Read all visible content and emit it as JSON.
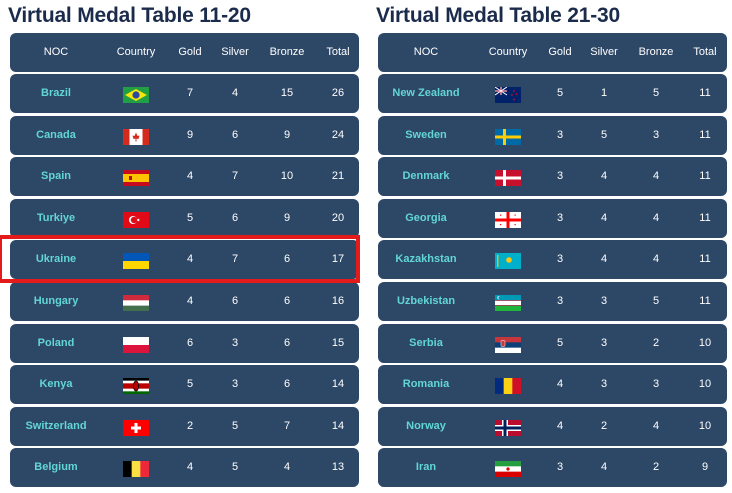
{
  "panels": [
    {
      "title": "Virtual Medal Table 11-20",
      "columns": [
        "NOC",
        "Country",
        "Gold",
        "Silver",
        "Bronze",
        "Total"
      ],
      "rows": [
        {
          "noc": "Brazil",
          "flag": "brazil-flag-icon",
          "gold": "7",
          "silver": "4",
          "bronze": "15",
          "total": "26"
        },
        {
          "noc": "Canada",
          "flag": "canada-flag-icon",
          "gold": "9",
          "silver": "6",
          "bronze": "9",
          "total": "24"
        },
        {
          "noc": "Spain",
          "flag": "spain-flag-icon",
          "gold": "4",
          "silver": "7",
          "bronze": "10",
          "total": "21"
        },
        {
          "noc": "Turkiye",
          "flag": "turkiye-flag-icon",
          "gold": "5",
          "silver": "6",
          "bronze": "9",
          "total": "20"
        },
        {
          "noc": "Ukraine",
          "flag": "ukraine-flag-icon",
          "gold": "4",
          "silver": "7",
          "bronze": "6",
          "total": "17"
        },
        {
          "noc": "Hungary",
          "flag": "hungary-flag-icon",
          "gold": "4",
          "silver": "6",
          "bronze": "6",
          "total": "16"
        },
        {
          "noc": "Poland",
          "flag": "poland-flag-icon",
          "gold": "6",
          "silver": "3",
          "bronze": "6",
          "total": "15"
        },
        {
          "noc": "Kenya",
          "flag": "kenya-flag-icon",
          "gold": "5",
          "silver": "3",
          "bronze": "6",
          "total": "14"
        },
        {
          "noc": "Switzerland",
          "flag": "switzerland-flag-icon",
          "gold": "2",
          "silver": "5",
          "bronze": "7",
          "total": "14"
        },
        {
          "noc": "Belgium",
          "flag": "belgium-flag-icon",
          "gold": "4",
          "silver": "5",
          "bronze": "4",
          "total": "13"
        }
      ]
    },
    {
      "title": "Virtual Medal Table 21-30",
      "columns": [
        "NOC",
        "Country",
        "Gold",
        "Silver",
        "Bronze",
        "Total"
      ],
      "rows": [
        {
          "noc": "New Zealand",
          "flag": "new-zealand-flag-icon",
          "gold": "5",
          "silver": "1",
          "bronze": "5",
          "total": "11"
        },
        {
          "noc": "Sweden",
          "flag": "sweden-flag-icon",
          "gold": "3",
          "silver": "5",
          "bronze": "3",
          "total": "11"
        },
        {
          "noc": "Denmark",
          "flag": "denmark-flag-icon",
          "gold": "3",
          "silver": "4",
          "bronze": "4",
          "total": "11"
        },
        {
          "noc": "Georgia",
          "flag": "georgia-flag-icon",
          "gold": "3",
          "silver": "4",
          "bronze": "4",
          "total": "11"
        },
        {
          "noc": "Kazakhstan",
          "flag": "kazakhstan-flag-icon",
          "gold": "3",
          "silver": "4",
          "bronze": "4",
          "total": "11"
        },
        {
          "noc": "Uzbekistan",
          "flag": "uzbekistan-flag-icon",
          "gold": "3",
          "silver": "3",
          "bronze": "5",
          "total": "11"
        },
        {
          "noc": "Serbia",
          "flag": "serbia-flag-icon",
          "gold": "5",
          "silver": "3",
          "bronze": "2",
          "total": "10"
        },
        {
          "noc": "Romania",
          "flag": "romania-flag-icon",
          "gold": "4",
          "silver": "3",
          "bronze": "3",
          "total": "10"
        },
        {
          "noc": "Norway",
          "flag": "norway-flag-icon",
          "gold": "4",
          "silver": "2",
          "bronze": "4",
          "total": "10"
        },
        {
          "noc": "Iran",
          "flag": "iran-flag-icon",
          "gold": "3",
          "silver": "4",
          "bronze": "2",
          "total": "9"
        }
      ]
    }
  ],
  "highlighted_row": {
    "panel": 0,
    "row": 4
  },
  "colors": {
    "title": "#1b2b4b",
    "row_background": "#2d4766",
    "noc_text": "#62d6d6",
    "value_text": "#ffffff",
    "highlight_border": "#e31b1b"
  }
}
